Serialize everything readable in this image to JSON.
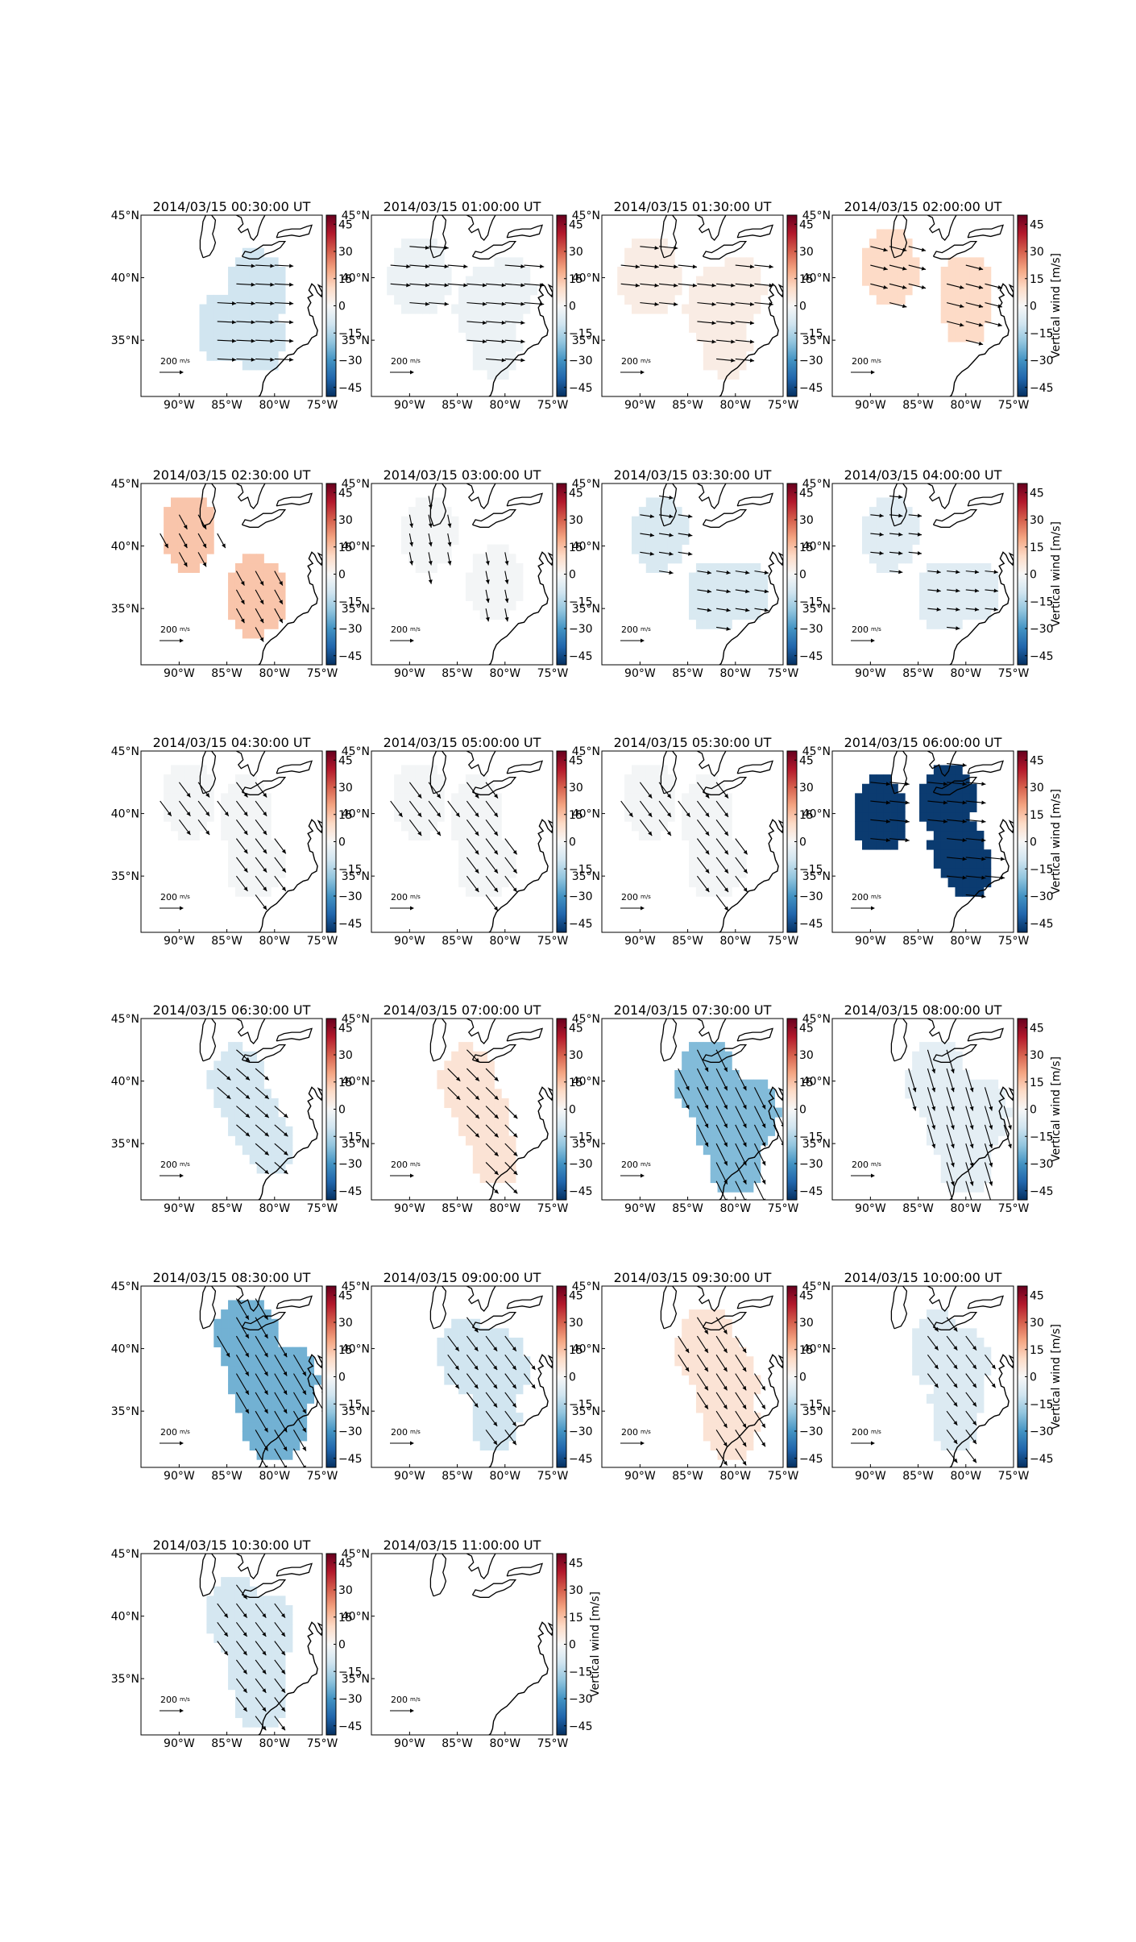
{
  "chart_data": {
    "type": "heatmap",
    "description_units": "map panels of vertical wind with horizontal wind vectors",
    "map": {
      "lon_range": [
        -94,
        -75
      ],
      "lat_range": [
        30.5,
        45
      ],
      "x_ticks": [
        -90,
        -85,
        -80,
        -75
      ],
      "x_tick_labels": [
        "90°W",
        "85°W",
        "80°W",
        "75°W"
      ],
      "y_ticks": [
        35,
        40,
        45
      ],
      "y_tick_labels": [
        "35°N",
        "40°N",
        "45°N"
      ]
    },
    "colorbar": {
      "label": "Vertical wind [m/s]",
      "vmin": -50,
      "vmax": 50,
      "ticks": [
        45,
        30,
        15,
        0,
        -15,
        -30,
        -45
      ],
      "tick_labels": [
        "45",
        "30",
        "15",
        "0",
        "−15",
        "−30",
        "−45"
      ],
      "colormap": "RdBu_r",
      "colors": [
        "#053061",
        "#2166ac",
        "#4393c3",
        "#92c5de",
        "#d1e5f0",
        "#f7f7f7",
        "#fddbc7",
        "#f4a582",
        "#d6604d",
        "#b2182b",
        "#67001f"
      ]
    },
    "quiver_key": {
      "label": "200",
      "unit": "m/s",
      "value": 200
    },
    "panels": [
      {
        "title": "2014/03/15 00:30:00 UT",
        "w": -10,
        "u": 1.0,
        "v": -0.05,
        "len": 0.55,
        "blobs": [
          [
            -82,
            39,
            3.2
          ],
          [
            -85,
            36,
            3.0
          ],
          [
            -81.5,
            35,
            2.5
          ]
        ]
      },
      {
        "title": "2014/03/15 01:00:00 UT",
        "w": -3,
        "u": 1.0,
        "v": -0.08,
        "len": 0.6,
        "blobs": [
          [
            -89,
            40,
            3.2
          ],
          [
            -82,
            37.5,
            3.3
          ],
          [
            -79.5,
            39,
            2.6
          ],
          [
            -81,
            34.5,
            2.5
          ]
        ]
      },
      {
        "title": "2014/03/15 01:30:00 UT",
        "w": 4,
        "u": 1.0,
        "v": -0.1,
        "len": 0.55,
        "blobs": [
          [
            -89,
            40,
            3.2
          ],
          [
            -82,
            37.5,
            3.3
          ],
          [
            -79.5,
            39,
            2.6
          ],
          [
            -81,
            34.5,
            2.5
          ]
        ]
      },
      {
        "title": "2014/03/15 02:00:00 UT",
        "w": 10,
        "u": 1.0,
        "v": -0.25,
        "len": 0.5,
        "blobs": [
          [
            -88,
            40.8,
            3.0
          ],
          [
            -80,
            39,
            2.8
          ],
          [
            -80,
            37.2,
            2.5
          ]
        ]
      },
      {
        "title": "2014/03/15 02:30:00 UT",
        "w": 14,
        "u": 0.5,
        "v": -0.9,
        "len": 0.45,
        "blobs": [
          [
            -89,
            41,
            3.0
          ],
          [
            -82,
            36,
            3.2
          ]
        ]
      },
      {
        "title": "2014/03/15 03:00:00 UT",
        "w": -1,
        "u": 0.2,
        "v": -1.0,
        "len": 0.3,
        "blobs": [
          [
            -88,
            41,
            3.0
          ],
          [
            -81,
            37,
            3.0
          ]
        ]
      },
      {
        "title": "2014/03/15 03:30:00 UT",
        "w": -8,
        "u": 1.0,
        "v": -0.15,
        "len": 0.35,
        "blobs": [
          [
            -88,
            41,
            3.0
          ],
          [
            -82,
            36,
            3.0
          ],
          [
            -79,
            36.5,
            2.5
          ]
        ]
      },
      {
        "title": "2014/03/15 04:00:00 UT",
        "w": -6,
        "u": 1.0,
        "v": -0.1,
        "len": 0.3,
        "blobs": [
          [
            -88,
            41,
            3.0
          ],
          [
            -82,
            36,
            3.0
          ],
          [
            -79,
            36.5,
            2.5
          ]
        ]
      },
      {
        "title": "2014/03/15 04:30:00 UT",
        "w": -1,
        "u": 0.6,
        "v": -0.8,
        "len": 0.55,
        "blobs": [
          [
            -89,
            41,
            3.0
          ],
          [
            -83,
            40,
            3.0
          ],
          [
            -82,
            36,
            3.0
          ]
        ]
      },
      {
        "title": "2014/03/15 05:00:00 UT",
        "w": -1,
        "u": 0.6,
        "v": -0.8,
        "len": 0.6,
        "blobs": [
          [
            -89,
            41,
            3.0
          ],
          [
            -83,
            40,
            3.0
          ],
          [
            -82,
            36,
            3.0
          ]
        ]
      },
      {
        "title": "2014/03/15 05:30:00 UT",
        "w": -1,
        "u": 0.6,
        "v": -0.8,
        "len": 0.6,
        "blobs": [
          [
            -89,
            41,
            3.0
          ],
          [
            -83,
            40,
            3.0
          ],
          [
            -82,
            36,
            3.0
          ]
        ]
      },
      {
        "title": "2014/03/15 06:00:00 UT",
        "w": -48,
        "u": 1.0,
        "v": -0.1,
        "len": 0.6,
        "blobs": [
          [
            -89,
            40,
            3.0
          ],
          [
            -82,
            41,
            3.0
          ],
          [
            -81,
            37.5,
            2.8
          ],
          [
            -79.5,
            35.5,
            2.4
          ]
        ]
      },
      {
        "title": "2014/03/15 06:30:00 UT",
        "w": -9,
        "u": 0.75,
        "v": -0.65,
        "len": 0.5,
        "blobs": [
          [
            -84,
            40,
            2.8
          ],
          [
            -82,
            37,
            2.7
          ],
          [
            -80.5,
            35,
            2.4
          ]
        ]
      },
      {
        "title": "2014/03/15 07:00:00 UT",
        "w": 7,
        "u": 0.7,
        "v": -0.7,
        "len": 0.5,
        "blobs": [
          [
            -84,
            40,
            2.8
          ],
          [
            -82,
            37,
            2.7
          ],
          [
            -81,
            34,
            2.5
          ]
        ]
      },
      {
        "title": "2014/03/15 07:30:00 UT",
        "w": -22,
        "u": 0.45,
        "v": -0.9,
        "len": 0.8,
        "blobs": [
          [
            -83,
            40,
            3.2
          ],
          [
            -81,
            37,
            3.5
          ],
          [
            -80,
            34,
            3.0
          ],
          [
            -78,
            37.5,
            2.5
          ]
        ]
      },
      {
        "title": "2014/03/15 08:00:00 UT",
        "w": -5,
        "u": 0.3,
        "v": -1.0,
        "len": 0.8,
        "blobs": [
          [
            -83,
            40,
            3.2
          ],
          [
            -81,
            37,
            3.5
          ],
          [
            -80,
            34,
            3.0
          ],
          [
            -78,
            37.5,
            2.5
          ]
        ]
      },
      {
        "title": "2014/03/15 08:30:00 UT",
        "w": -24,
        "u": 0.5,
        "v": -0.85,
        "len": 0.8,
        "blobs": [
          [
            -83,
            41,
            3.2
          ],
          [
            -81,
            37,
            3.6
          ],
          [
            -80,
            34,
            3.2
          ],
          [
            -78,
            37.5,
            2.6
          ]
        ]
      },
      {
        "title": "2014/03/15 09:00:00 UT",
        "w": -10,
        "u": 0.6,
        "v": -0.8,
        "len": 0.55,
        "blobs": [
          [
            -84,
            39.5,
            3.0
          ],
          [
            -80.5,
            38.5,
            3.0
          ],
          [
            -81,
            34.5,
            2.6
          ]
        ]
      },
      {
        "title": "2014/03/15 09:30:00 UT",
        "w": 7,
        "u": 0.55,
        "v": -0.85,
        "len": 0.6,
        "blobs": [
          [
            -83,
            40,
            3.2
          ],
          [
            -81,
            37,
            3.4
          ],
          [
            -80.5,
            34,
            2.8
          ]
        ]
      },
      {
        "title": "2014/03/15 10:00:00 UT",
        "w": -7,
        "u": 0.6,
        "v": -0.8,
        "len": 0.5,
        "blobs": [
          [
            -83,
            40,
            3.0
          ],
          [
            -80,
            39,
            2.7
          ],
          [
            -81,
            36,
            2.8
          ],
          [
            -81,
            34,
            2.4
          ]
        ]
      },
      {
        "title": "2014/03/15 10:30:00 UT",
        "w": -9,
        "u": 0.6,
        "v": -0.8,
        "len": 0.5,
        "blobs": [
          [
            -84,
            40,
            3.2
          ],
          [
            -81,
            39,
            3.0
          ],
          [
            -82,
            36,
            3.2
          ],
          [
            -81.5,
            33.5,
            2.6
          ]
        ]
      },
      {
        "title": "2014/03/15 11:00:00 UT",
        "w": null,
        "u": 0,
        "v": 0,
        "len": 0,
        "blobs": []
      }
    ]
  }
}
